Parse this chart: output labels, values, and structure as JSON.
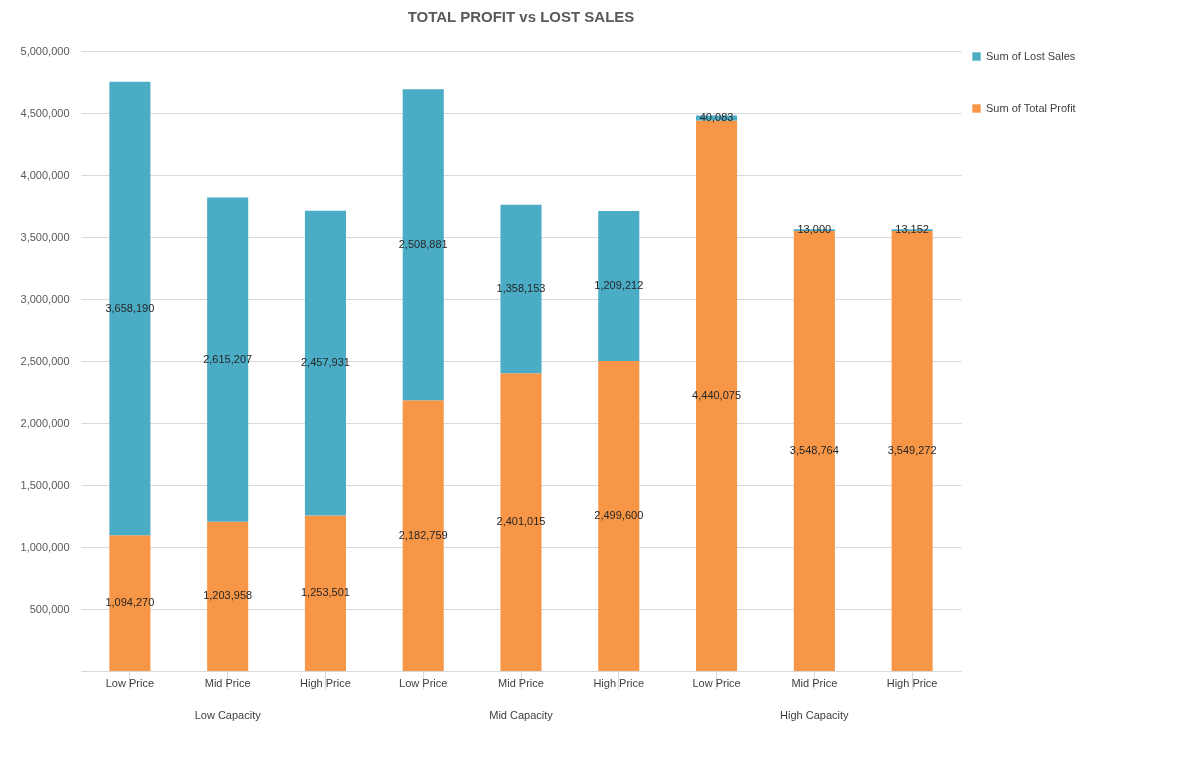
{
  "chart_data": {
    "type": "bar",
    "title": "TOTAL PROFIT vs LOST SALES",
    "stacked": true,
    "legend": "right",
    "grid": "y",
    "categories": [
      "Low Price",
      "Mid Price",
      "High Price",
      "Low Price",
      "Mid Price",
      "High Price",
      "Low Price",
      "Mid Price",
      "High Price"
    ],
    "annotations": [
      "Low Capacity",
      "Mid Capacity",
      "High Capacity"
    ],
    "series": [
      {
        "name": "Sum of Total Profit",
        "color": "#f79646",
        "values": [
          1094270,
          1203958,
          1253501,
          2182759,
          2401015,
          2499600,
          4440075,
          3548764,
          3549272
        ],
        "value_labels": [
          "1,094,270",
          "1,203,958",
          "1,253,501",
          "2,182,759",
          "2,401,015",
          "2,499,600",
          "4,440,075",
          "3,548,764",
          "3,549,272"
        ]
      },
      {
        "name": "Sum of Lost Sales",
        "color": "#4bacc6",
        "values": [
          3658190,
          2615207,
          2457931,
          2508881,
          1358153,
          1209212,
          40083,
          13000,
          13152
        ],
        "value_labels": [
          "3,658,190",
          "2,615,207",
          "2,457,931",
          "2,508,881",
          "1,358,153",
          "1,209,212",
          "40,083",
          "13,000",
          "13,152"
        ]
      }
    ],
    "ylim": [
      0,
      5000000
    ],
    "yticks": [
      {
        "value": 0,
        "label": null
      },
      {
        "value": 500000,
        "label": "500,000"
      },
      {
        "value": 1000000,
        "label": "1,000,000"
      },
      {
        "value": 1500000,
        "label": "1,500,000"
      },
      {
        "value": 2000000,
        "label": "2,000,000"
      },
      {
        "value": 2500000,
        "label": "2,500,000"
      },
      {
        "value": 3000000,
        "label": "3,000,000"
      },
      {
        "value": 3500000,
        "label": "3,500,000"
      },
      {
        "value": 4000000,
        "label": "4,000,000"
      },
      {
        "value": 4500000,
        "label": "4,500,000"
      },
      {
        "value": 5000000,
        "label": "5,000,000"
      }
    ]
  }
}
